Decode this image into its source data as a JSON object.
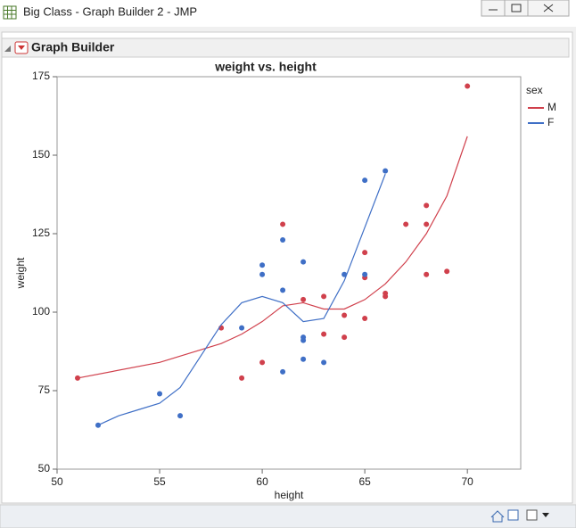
{
  "window_title": "Big Class - Graph Builder 2 - JMP",
  "panel_title": "Graph Builder",
  "chart_data": {
    "type": "scatter",
    "title": "weight vs. height",
    "x_label": "height",
    "y_label": "weight",
    "xlim": [
      50,
      72.6
    ],
    "ylim": [
      50,
      175
    ],
    "xticks": [
      50,
      55,
      60,
      65,
      70
    ],
    "yticks": [
      50,
      75,
      100,
      125,
      150,
      175
    ],
    "grid": false,
    "legend_title": "sex",
    "legend_position": "right",
    "series": [
      {
        "name": "M",
        "color": "#d0404c",
        "x": [
          51,
          58,
          59,
          60,
          61,
          62,
          63,
          63,
          64,
          64,
          65,
          65,
          65,
          66,
          66,
          67,
          68,
          68,
          68,
          69,
          70
        ],
        "values": [
          79,
          95,
          79,
          84,
          128,
          104,
          105,
          93,
          99,
          92,
          119,
          111,
          98,
          106,
          105,
          128,
          134,
          128,
          112,
          113,
          172
        ],
        "smoother": {
          "x": [
            51,
            55,
            58,
            59,
            60,
            61,
            62,
            63,
            64,
            65,
            66,
            67,
            68,
            69,
            70
          ],
          "values": [
            79,
            84,
            90,
            93,
            97,
            102,
            103,
            101,
            101,
            104,
            109,
            116,
            125,
            137,
            156
          ]
        }
      },
      {
        "name": "F",
        "color": "#3f6fc6",
        "x": [
          52,
          55,
          56,
          59,
          60,
          60,
          61,
          61,
          61,
          62,
          62,
          62,
          62,
          63,
          64,
          65,
          65,
          66
        ],
        "values": [
          64,
          74,
          67,
          95,
          115,
          112,
          123,
          107,
          81,
          116,
          92,
          91,
          85,
          84,
          112,
          142,
          112,
          145
        ],
        "smoother": {
          "x": [
            52,
            53,
            54,
            55,
            56,
            57,
            58,
            59,
            60,
            61,
            62,
            63,
            64,
            65,
            66
          ],
          "values": [
            64,
            67,
            69,
            71,
            76,
            86,
            96,
            103,
            105,
            103,
            97,
            98,
            110,
            127,
            144
          ]
        }
      }
    ]
  }
}
